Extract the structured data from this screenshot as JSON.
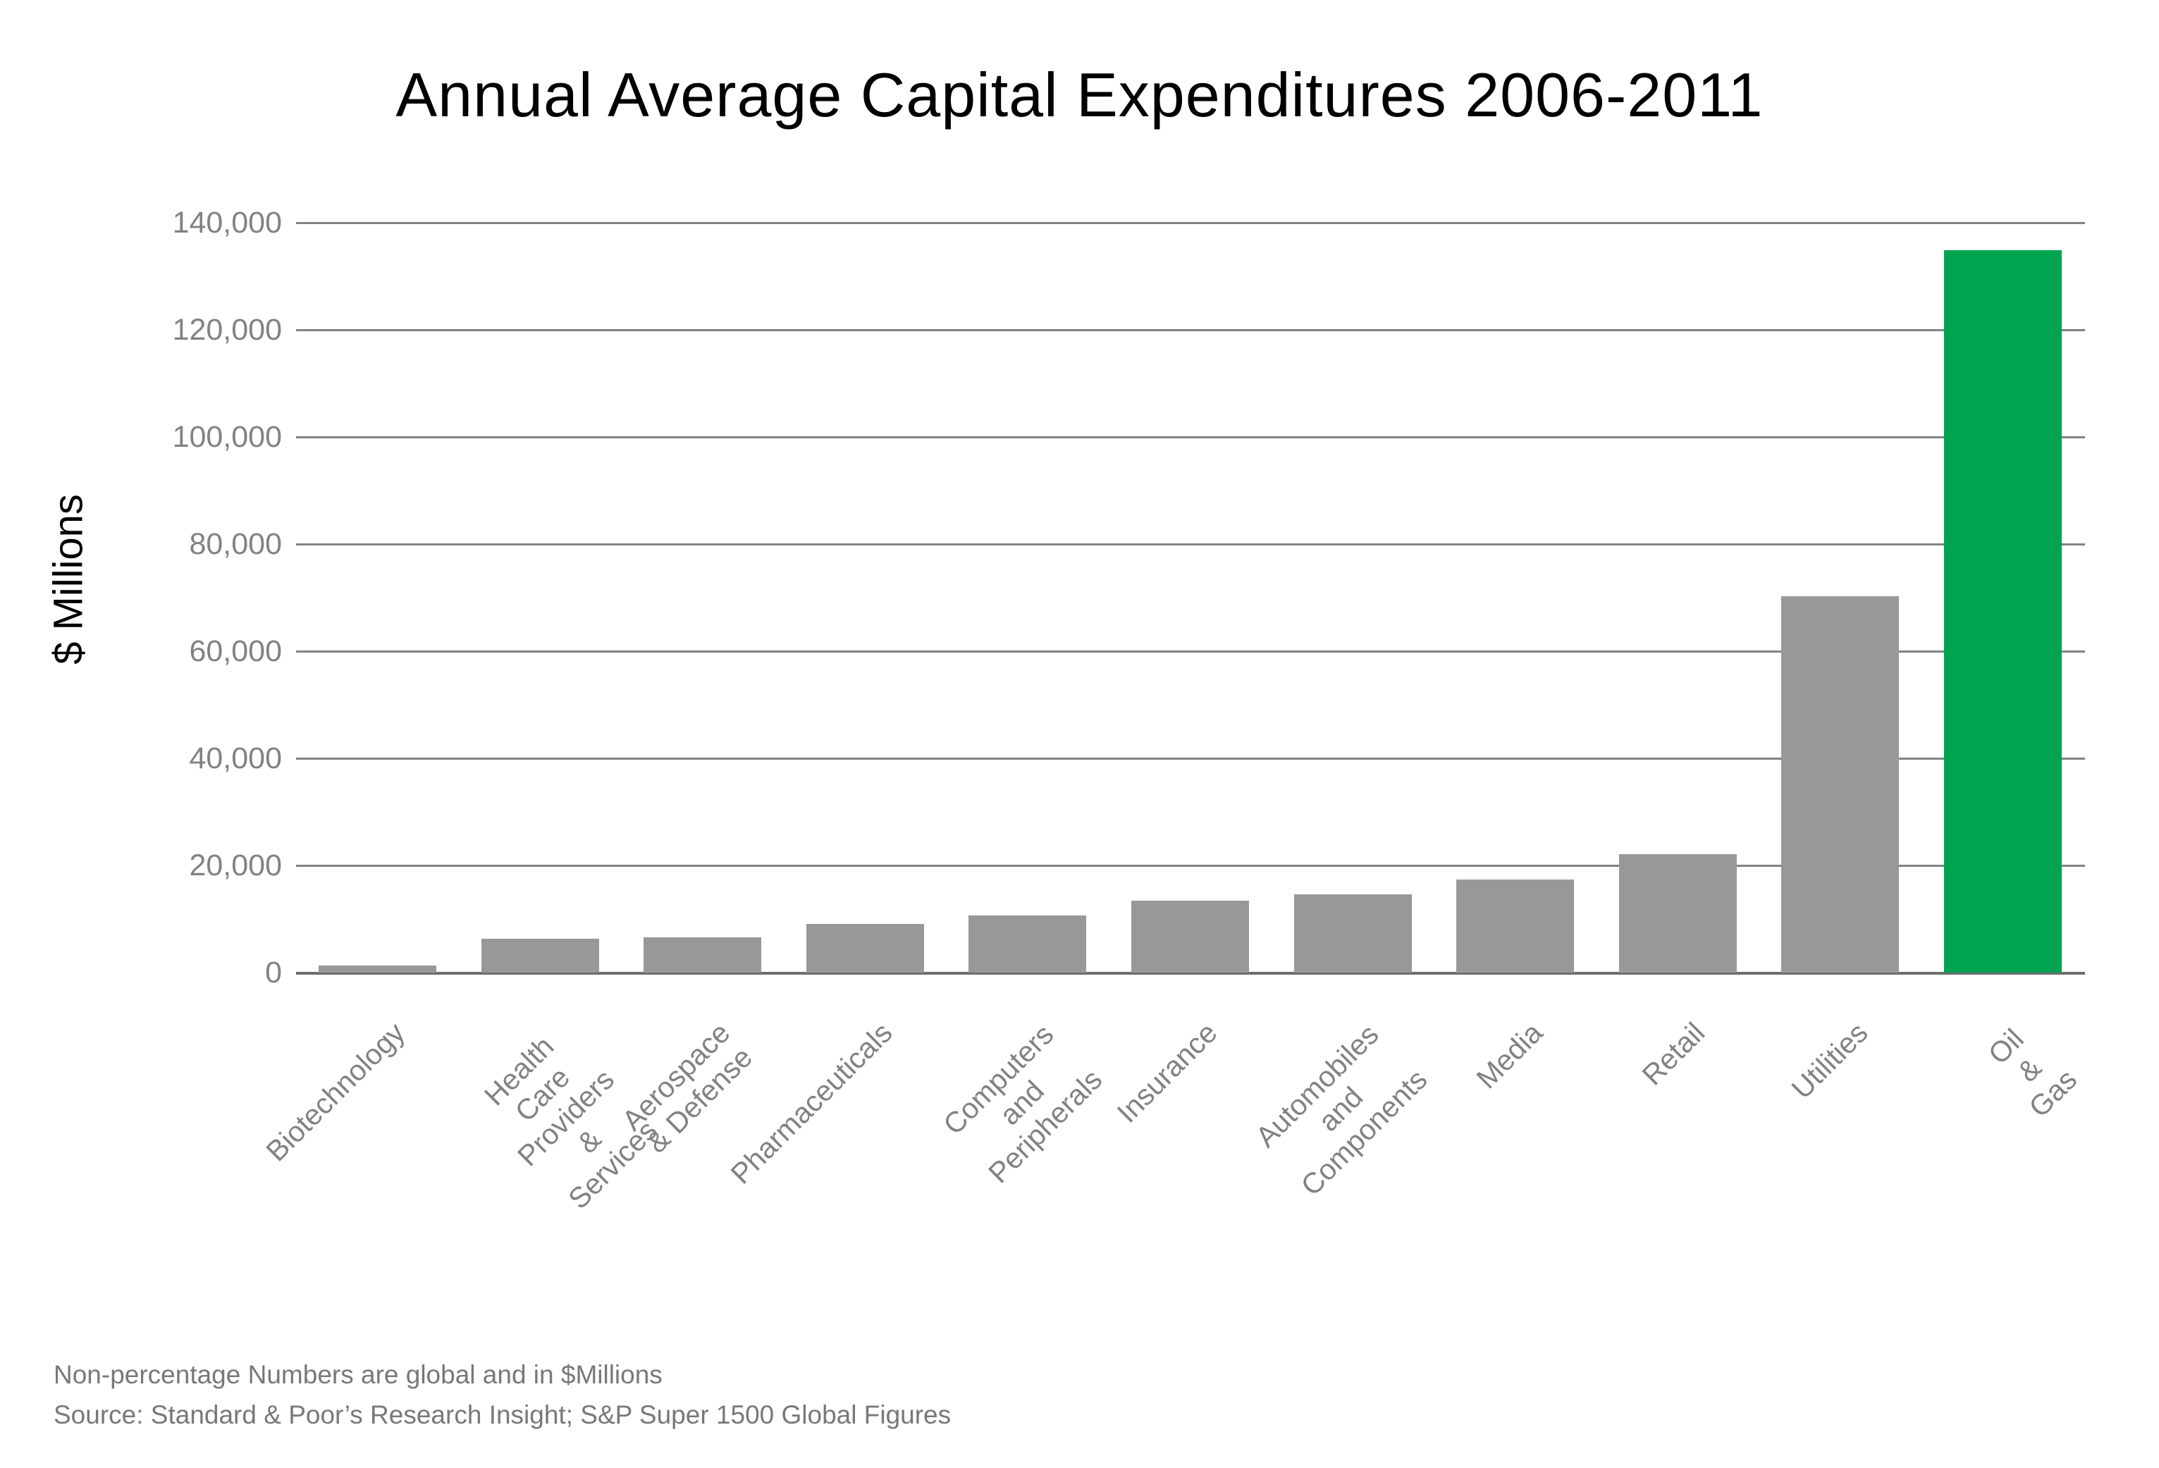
{
  "title": "Annual Average Capital Expenditures 2006-2011",
  "y_axis_label": "$ Millions",
  "footer": {
    "line1": "Non-percentage Numbers are global and in $Millions",
    "line2": "Source: Standard & Poor’s Research Insight; S&P Super 1500 Global Figures"
  },
  "colors": {
    "title_text": "#000000",
    "bar_default": "#97989a",
    "bar_highlight": "#00a450",
    "gridline": "#808285",
    "axis_baseline": "#6d6e71",
    "y_tick_text": "#808285",
    "x_tick_text": "#808285",
    "footer_text": "#77787b"
  },
  "chart_data": {
    "type": "bar",
    "title": "Annual Average Capital Expenditures 2006-2011",
    "xlabel": "",
    "ylabel": "$ Millions",
    "ylim": [
      0,
      140000
    ],
    "ytick_step": 20000,
    "grid": true,
    "legend": "none",
    "categories": [
      "Biotechnology",
      "Health Care Providers\n& Services",
      "Aerospace\n& Defense",
      "Pharmaceuticals",
      "Computers and\nPeripherals",
      "Insurance",
      "Automobiles and\nComponents",
      "Media",
      "Retail",
      "Utilities",
      "Oil & Gas"
    ],
    "values": [
      1300,
      6300,
      6600,
      9100,
      10600,
      13400,
      14600,
      17400,
      22100,
      70300,
      134900
    ],
    "highlight_category": "Oil & Gas",
    "units": "$ Millions"
  }
}
